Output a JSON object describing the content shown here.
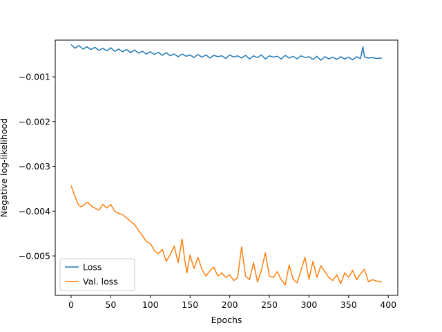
{
  "chart_data": {
    "type": "line",
    "title": "",
    "xlabel": "Epochs",
    "ylabel": "Negative log-likelihood",
    "xlim": [
      -20,
      412
    ],
    "ylim": [
      -0.00588,
      -0.00018
    ],
    "xticks": [
      0,
      50,
      100,
      150,
      200,
      250,
      300,
      350,
      400
    ],
    "xtick_labels": [
      "0",
      "50",
      "100",
      "150",
      "200",
      "250",
      "300",
      "350",
      "400"
    ],
    "yticks": [
      -0.001,
      -0.002,
      -0.003,
      -0.004,
      -0.005
    ],
    "ytick_labels": [
      "−0.001",
      "−0.002",
      "−0.003",
      "−0.004",
      "−0.005"
    ],
    "grid": false,
    "legend_position": "lower-left",
    "series": [
      {
        "name": "Loss",
        "color": "#1f77b4",
        "x": [
          0,
          5,
          10,
          15,
          20,
          25,
          30,
          35,
          40,
          45,
          50,
          55,
          60,
          65,
          70,
          75,
          80,
          85,
          90,
          95,
          100,
          105,
          110,
          115,
          120,
          125,
          130,
          135,
          140,
          145,
          150,
          155,
          160,
          165,
          170,
          175,
          180,
          185,
          190,
          195,
          200,
          205,
          210,
          215,
          220,
          225,
          230,
          235,
          240,
          245,
          250,
          255,
          260,
          265,
          270,
          275,
          280,
          285,
          290,
          295,
          300,
          305,
          310,
          315,
          320,
          325,
          330,
          335,
          340,
          345,
          350,
          355,
          360,
          365,
          368,
          370,
          375,
          380,
          385,
          392
        ],
        "y": [
          -0.00028,
          -0.00036,
          -0.0003,
          -0.00038,
          -0.00033,
          -0.00039,
          -0.00034,
          -0.00041,
          -0.00036,
          -0.00042,
          -0.00035,
          -0.00043,
          -0.00038,
          -0.00044,
          -0.00039,
          -0.00046,
          -0.0004,
          -0.00047,
          -0.00043,
          -0.00049,
          -0.00044,
          -0.0005,
          -0.00045,
          -0.00052,
          -0.00046,
          -0.00053,
          -0.00049,
          -0.00055,
          -0.00049,
          -0.00054,
          -0.00051,
          -0.00057,
          -0.0005,
          -0.00056,
          -0.00051,
          -0.00058,
          -0.00052,
          -0.00055,
          -0.00053,
          -0.00059,
          -0.00051,
          -0.00056,
          -0.00053,
          -0.00058,
          -0.00052,
          -0.0006,
          -0.00053,
          -0.00057,
          -0.00051,
          -0.0006,
          -0.00053,
          -0.00056,
          -0.00054,
          -0.0006,
          -0.00052,
          -0.00058,
          -0.00054,
          -0.0006,
          -0.00053,
          -0.00057,
          -0.00055,
          -0.00061,
          -0.00054,
          -0.00063,
          -0.00055,
          -0.0006,
          -0.00056,
          -0.00061,
          -0.00055,
          -0.0006,
          -0.00056,
          -0.00062,
          -0.00055,
          -0.00059,
          -0.00033,
          -0.00056,
          -0.00058,
          -0.00057,
          -0.00059,
          -0.00058
        ]
      },
      {
        "name": "Val. loss",
        "color": "#ff7f0e",
        "x": [
          0,
          3,
          6,
          9,
          12,
          15,
          18,
          21,
          24,
          27,
          30,
          35,
          40,
          45,
          50,
          55,
          60,
          65,
          70,
          75,
          80,
          85,
          90,
          95,
          100,
          105,
          110,
          115,
          120,
          125,
          130,
          135,
          140,
          143,
          146,
          150,
          155,
          160,
          165,
          170,
          175,
          180,
          185,
          190,
          195,
          200,
          205,
          210,
          215,
          220,
          225,
          230,
          235,
          240,
          245,
          250,
          255,
          260,
          265,
          270,
          275,
          280,
          285,
          290,
          295,
          300,
          305,
          310,
          315,
          320,
          325,
          330,
          335,
          340,
          345,
          350,
          355,
          360,
          365,
          370,
          375,
          380,
          385,
          392
        ],
        "y": [
          -0.00343,
          -0.00358,
          -0.00372,
          -0.00385,
          -0.0039,
          -0.00388,
          -0.00383,
          -0.0038,
          -0.00386,
          -0.0039,
          -0.00393,
          -0.00398,
          -0.00385,
          -0.00393,
          -0.00385,
          -0.004,
          -0.00405,
          -0.00408,
          -0.00415,
          -0.00423,
          -0.0043,
          -0.00443,
          -0.00455,
          -0.00468,
          -0.00472,
          -0.00488,
          -0.00495,
          -0.00485,
          -0.00512,
          -0.00497,
          -0.00478,
          -0.00515,
          -0.00462,
          -0.00505,
          -0.00538,
          -0.00498,
          -0.00528,
          -0.00503,
          -0.0053,
          -0.00545,
          -0.00533,
          -0.00525,
          -0.00545,
          -0.00538,
          -0.00548,
          -0.00542,
          -0.00555,
          -0.00548,
          -0.0048,
          -0.00545,
          -0.00553,
          -0.00515,
          -0.00558,
          -0.00532,
          -0.00493,
          -0.00545,
          -0.00548,
          -0.00535,
          -0.00553,
          -0.00565,
          -0.0052,
          -0.00552,
          -0.0056,
          -0.00532,
          -0.00503,
          -0.00552,
          -0.00512,
          -0.00548,
          -0.00522,
          -0.00535,
          -0.00548,
          -0.00555,
          -0.00542,
          -0.00562,
          -0.00538,
          -0.00548,
          -0.00532,
          -0.00553,
          -0.0054,
          -0.0053,
          -0.00558,
          -0.00553,
          -0.00556,
          -0.00558
        ]
      }
    ]
  }
}
